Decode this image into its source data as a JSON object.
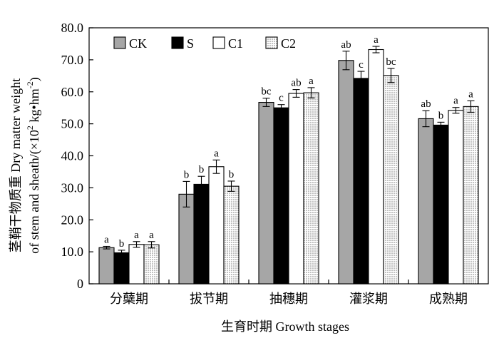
{
  "chart_data": {
    "type": "bar",
    "title": "",
    "ylabel_line1": "茎鞘干物质重  Dry matter weight",
    "ylabel_line2": "of stem and sheath/(×10",
    "ylabel_line2_sup": "2",
    "ylabel_line2_tail": " kg•hm",
    "ylabel_line2_sup2": "-2",
    "ylabel_line2_end": ")",
    "xlabel": "生育时期  Growth stages",
    "ylim": [
      0,
      80
    ],
    "yticks": [
      "0",
      "10.0",
      "20.0",
      "30.0",
      "40.0",
      "50.0",
      "60.0",
      "70.0",
      "80.0"
    ],
    "categories": [
      "分蘖期",
      "拔节期",
      "抽穗期",
      "灌浆期",
      "成熟期"
    ],
    "series": [
      {
        "name": "CK",
        "color": "#a6a6a6",
        "fill": "solid",
        "values": [
          11.3,
          28.0,
          56.7,
          69.8,
          51.6
        ],
        "errors": [
          0.4,
          4.0,
          1.3,
          2.9,
          2.5
        ],
        "significance": [
          "a",
          "b",
          "bc",
          "ab",
          "ab"
        ]
      },
      {
        "name": "S",
        "color": "#000000",
        "fill": "solid",
        "values": [
          9.7,
          31.1,
          55.0,
          64.2,
          49.6
        ],
        "errors": [
          0.8,
          2.5,
          1.0,
          2.2,
          0.9
        ],
        "significance": [
          "b",
          "b",
          "c",
          "c",
          "b"
        ]
      },
      {
        "name": "C1",
        "color": "#ffffff",
        "fill": "solid",
        "values": [
          12.3,
          36.6,
          59.5,
          73.2,
          54.2
        ],
        "errors": [
          0.9,
          2.1,
          1.2,
          1.0,
          0.9
        ],
        "significance": [
          "a",
          "a",
          "ab",
          "a",
          "a"
        ]
      },
      {
        "name": "C2",
        "color": "#d9d9d9",
        "fill": "dotted",
        "values": [
          12.2,
          30.5,
          59.7,
          65.1,
          55.4
        ],
        "errors": [
          1.0,
          1.6,
          1.6,
          2.2,
          1.8
        ],
        "significance": [
          "a",
          "b",
          "a",
          "bc",
          "a"
        ]
      }
    ],
    "legend_position": "top-left",
    "grid": false
  }
}
